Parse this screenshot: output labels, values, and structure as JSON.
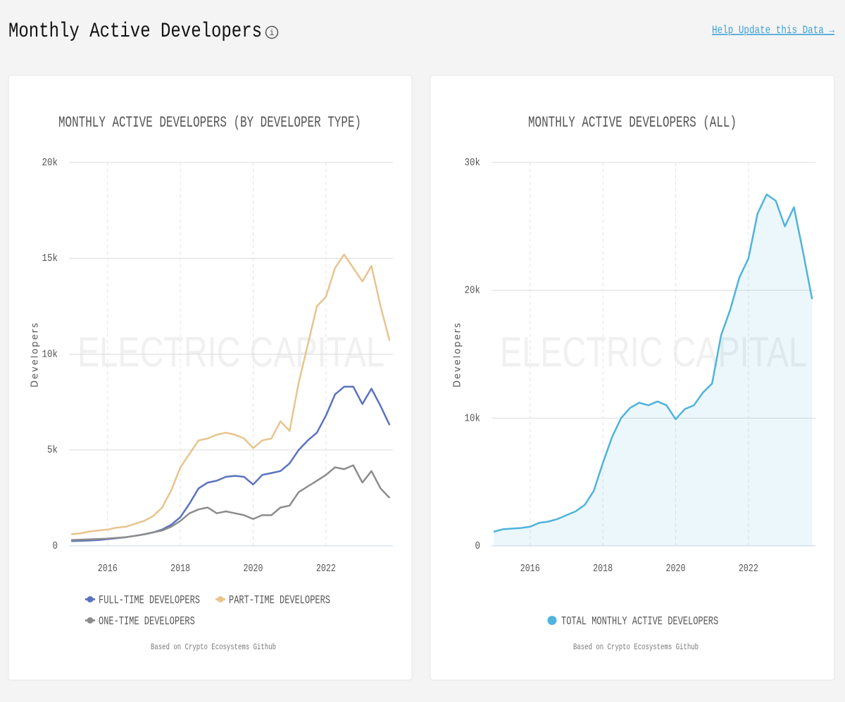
{
  "page": {
    "title": "Monthly Active Developers",
    "link": "Help Update this Data →"
  },
  "chart_data": [
    {
      "type": "line",
      "title": "MONTHLY ACTIVE DEVELOPERS (BY DEVELOPER TYPE)",
      "ylabel": "Developers",
      "watermark": "ELECTRIC CAPITAL",
      "note": "Based on Crypto Ecosystems Github",
      "grid": true,
      "x": [
        2015,
        2015.25,
        2015.5,
        2015.75,
        2016,
        2016.25,
        2016.5,
        2016.75,
        2017,
        2017.25,
        2017.5,
        2017.75,
        2018,
        2018.25,
        2018.5,
        2018.75,
        2019,
        2019.25,
        2019.5,
        2019.75,
        2020,
        2020.25,
        2020.5,
        2020.75,
        2021,
        2021.25,
        2021.5,
        2021.75,
        2022,
        2022.25,
        2022.5,
        2022.75,
        2023,
        2023.25,
        2023.5,
        2023.75
      ],
      "xlim": [
        2014.94,
        2023.84
      ],
      "xticks": [
        2016,
        2018,
        2020,
        2022
      ],
      "ylim": [
        0,
        20000
      ],
      "yticks": [
        0,
        {
          "value": 5000,
          "label": "5k"
        },
        {
          "value": 10000,
          "label": "10k"
        },
        {
          "value": 15000,
          "label": "15k"
        },
        {
          "value": 20000,
          "label": "20k"
        }
      ],
      "series": [
        {
          "name": "FULL-TIME DEVELOPERS",
          "color": "#5a72c0",
          "values": [
            250,
            260,
            280,
            300,
            350,
            400,
            450,
            520,
            600,
            700,
            850,
            1100,
            1500,
            2200,
            3000,
            3300,
            3400,
            3600,
            3650,
            3600,
            3200,
            3700,
            3800,
            3900,
            4300,
            5000,
            5500,
            5900,
            6800,
            7900,
            8300,
            8300,
            7400,
            8200,
            7300,
            6300
          ]
        },
        {
          "name": "PART-TIME DEVELOPERS",
          "color": "#e8c48e",
          "values": [
            600,
            650,
            750,
            800,
            850,
            950,
            1000,
            1150,
            1300,
            1550,
            2000,
            2900,
            4100,
            4800,
            5500,
            5600,
            5800,
            5900,
            5800,
            5600,
            5100,
            5500,
            5600,
            6500,
            6000,
            8500,
            10500,
            12500,
            13000,
            14500,
            15200,
            14500,
            13800,
            14600,
            12500,
            10700
          ]
        },
        {
          "name": "ONE-TIME DEVELOPERS",
          "color": "#8c8c8c",
          "values": [
            300,
            320,
            340,
            360,
            380,
            420,
            450,
            520,
            600,
            700,
            800,
            1000,
            1300,
            1700,
            1900,
            2000,
            1700,
            1800,
            1700,
            1600,
            1400,
            1600,
            1600,
            2000,
            2100,
            2800,
            3100,
            3400,
            3700,
            4100,
            4000,
            4200,
            3300,
            3900,
            3000,
            2500
          ]
        }
      ]
    },
    {
      "type": "area",
      "title": "MONTHLY ACTIVE DEVELOPERS (ALL)",
      "ylabel": "Developers",
      "watermark": "ELECTRIC CAPITAL",
      "note": "Based on Crypto Ecosystems Github",
      "grid": true,
      "x": [
        2015,
        2015.25,
        2015.5,
        2015.75,
        2016,
        2016.25,
        2016.5,
        2016.75,
        2017,
        2017.25,
        2017.5,
        2017.75,
        2018,
        2018.25,
        2018.5,
        2018.75,
        2019,
        2019.25,
        2019.5,
        2019.75,
        2020,
        2020.25,
        2020.5,
        2020.75,
        2021,
        2021.25,
        2021.5,
        2021.75,
        2022,
        2022.25,
        2022.5,
        2022.75,
        2023,
        2023.25,
        2023.5,
        2023.75
      ],
      "xlim": [
        2014.94,
        2023.84
      ],
      "xticks": [
        2016,
        2018,
        2020,
        2022
      ],
      "ylim": [
        0,
        30000
      ],
      "yticks": [
        0,
        {
          "value": 10000,
          "label": "10k"
        },
        {
          "value": 20000,
          "label": "20k"
        },
        {
          "value": 30000,
          "label": "30k"
        }
      ],
      "series": [
        {
          "name": "TOTAL MONTHLY ACTIVE DEVELOPERS",
          "color": "#4fb3dc",
          "values": [
            1100,
            1300,
            1350,
            1400,
            1500,
            1800,
            1900,
            2100,
            2400,
            2700,
            3200,
            4300,
            6500,
            8500,
            10000,
            10800,
            11200,
            11000,
            11300,
            11000,
            9900,
            10700,
            11000,
            12000,
            12700,
            16500,
            18500,
            21000,
            22500,
            26000,
            27500,
            27000,
            25000,
            26500,
            23000,
            19300
          ]
        }
      ]
    }
  ]
}
